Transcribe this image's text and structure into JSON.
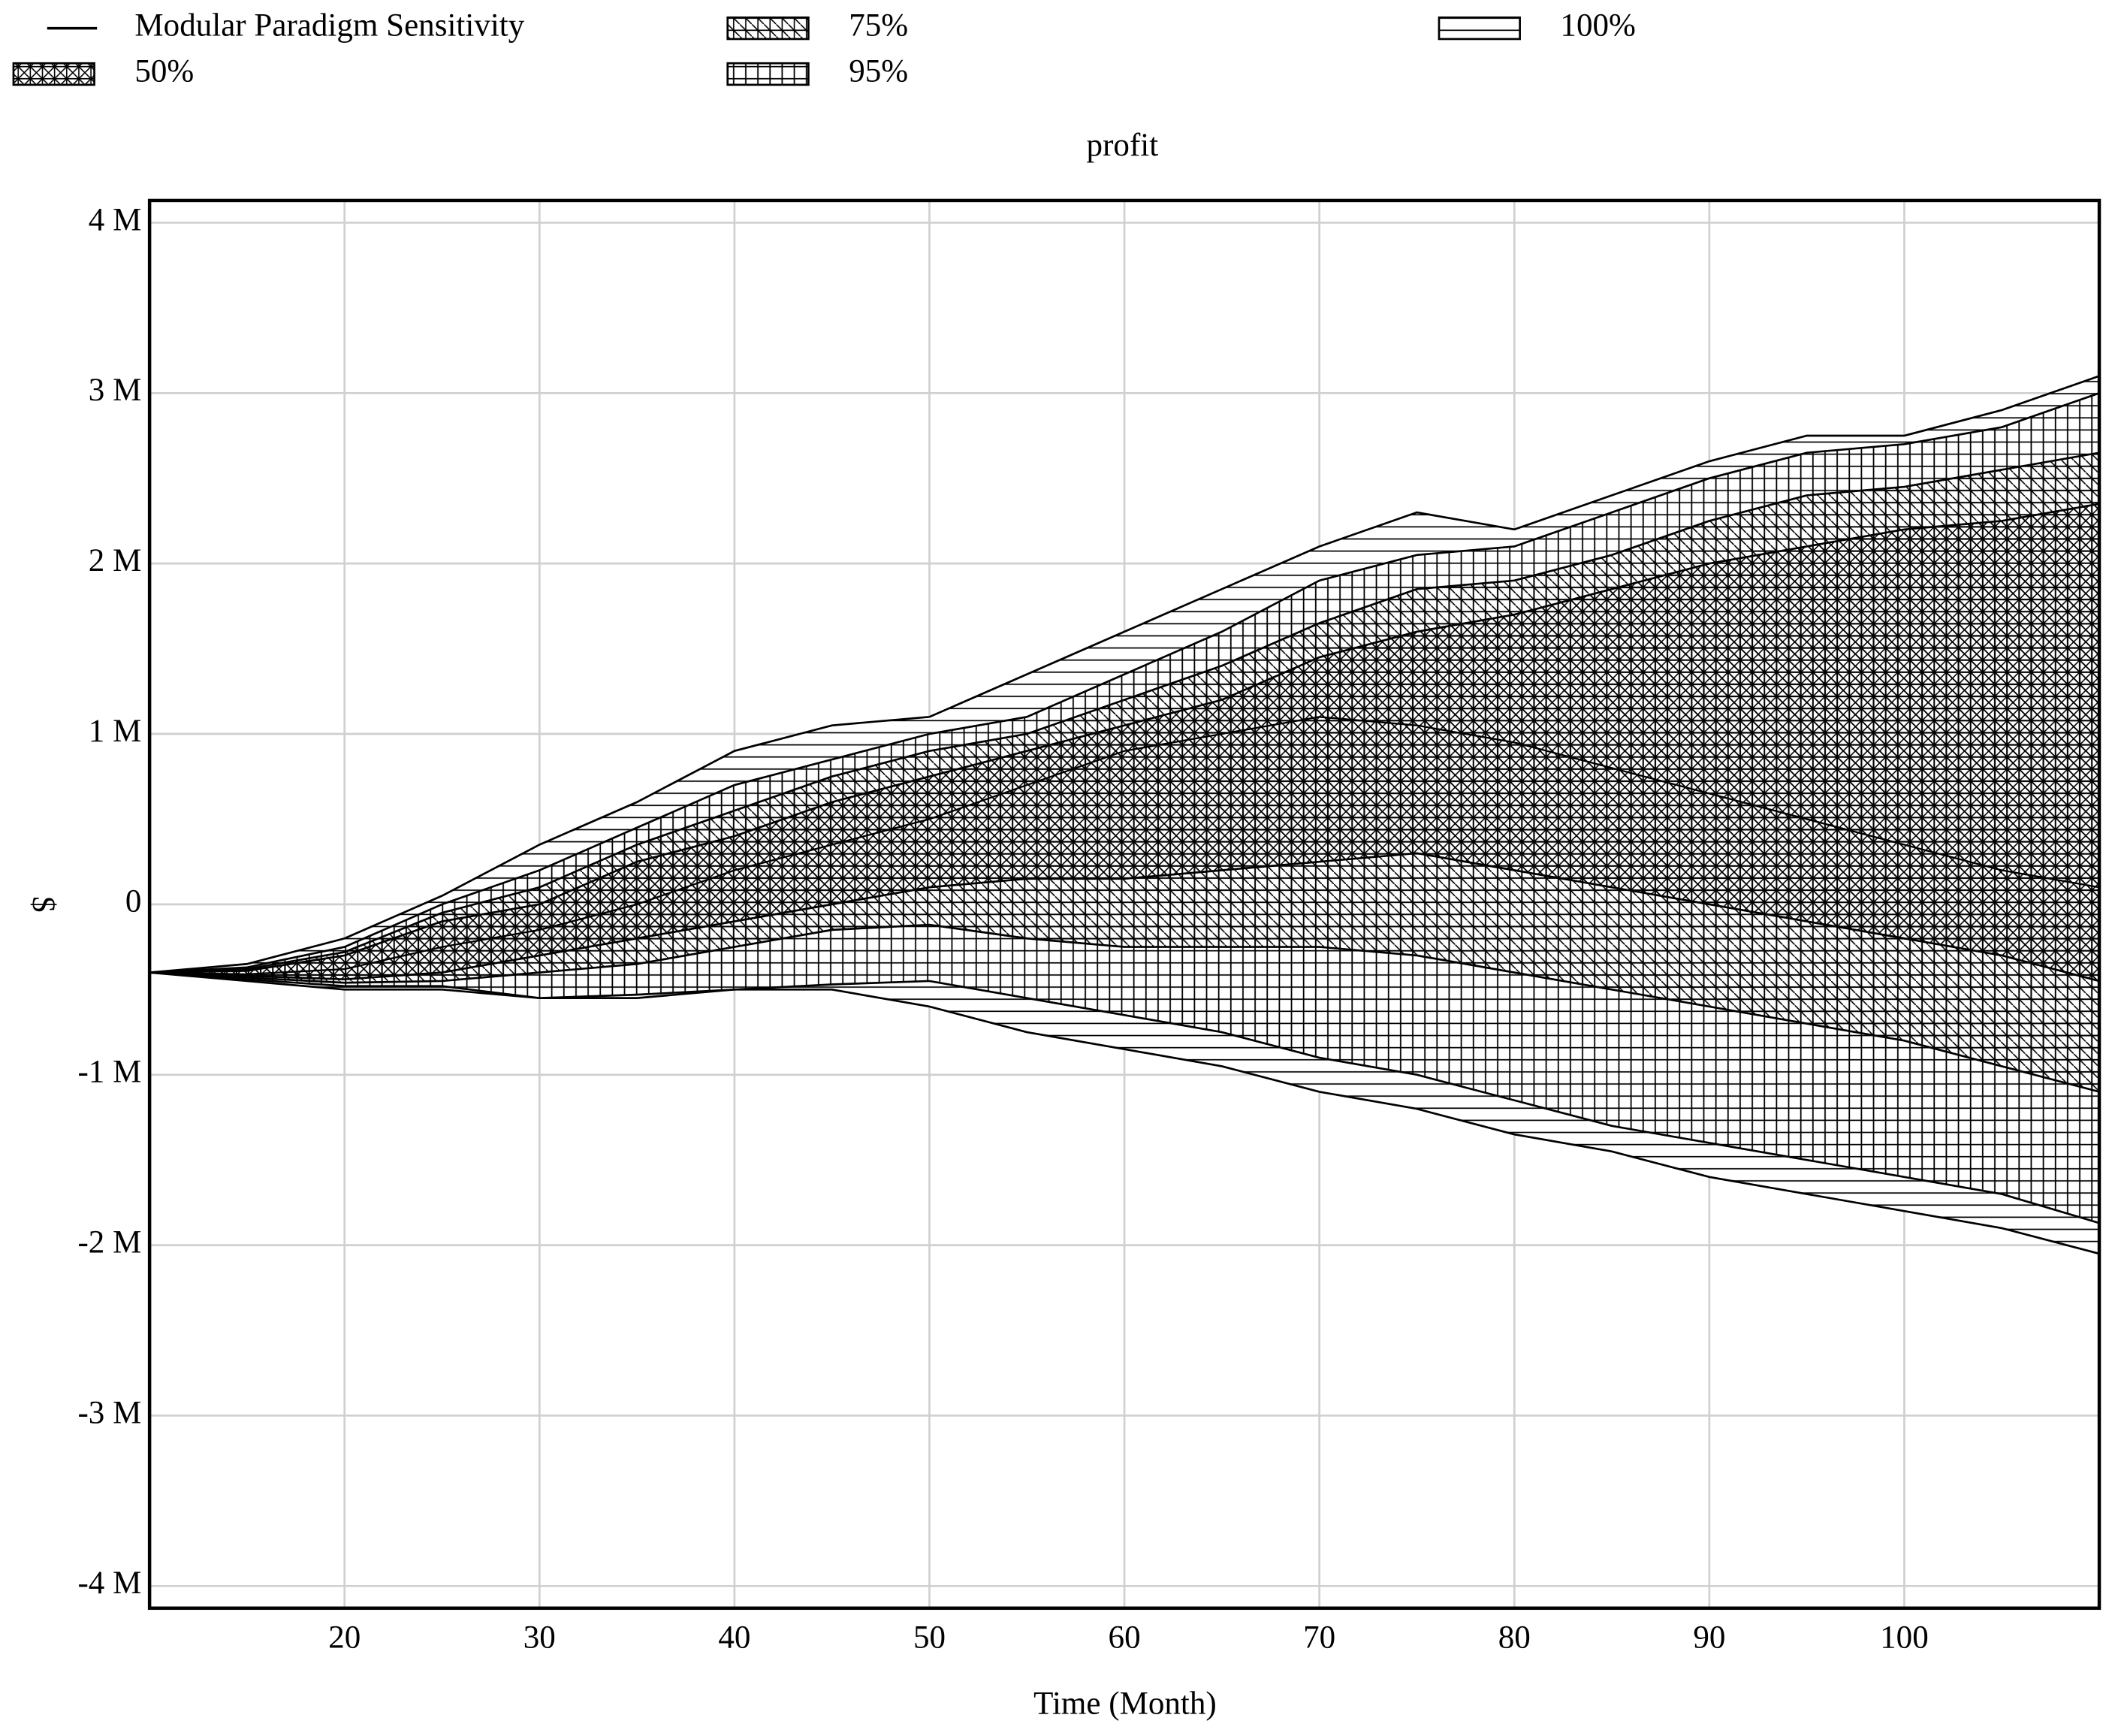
{
  "chart_data": {
    "type": "band",
    "title": "profit",
    "x_label": "Time (Month)",
    "y_label": "$",
    "x": [
      10,
      15,
      20,
      25,
      30,
      35,
      40,
      45,
      50,
      55,
      60,
      65,
      70,
      75,
      80,
      85,
      90,
      95,
      100,
      105,
      110
    ],
    "xlim": [
      10,
      110
    ],
    "xticks": [
      20,
      30,
      40,
      50,
      60,
      70,
      80,
      90,
      100
    ],
    "ylim": [
      -4130000,
      4130000
    ],
    "yticks": [
      {
        "value": -4000000,
        "label": "-4 M"
      },
      {
        "value": -3000000,
        "label": "-3 M"
      },
      {
        "value": -2000000,
        "label": "-2 M"
      },
      {
        "value": -1000000,
        "label": "-1 M"
      },
      0,
      {
        "value": 1000000,
        "label": "1 M"
      },
      {
        "value": 2000000,
        "label": "2 M"
      },
      {
        "value": 3000000,
        "label": "3 M"
      },
      {
        "value": 4000000,
        "label": "4 M"
      }
    ],
    "grid": true,
    "series": [
      {
        "name": "Modular Paradigm Sensitivity",
        "color": "#000000",
        "kind": "line",
        "values": [
          -400000,
          -410000,
          -380000,
          -250000,
          -150000,
          0,
          200000,
          350000,
          500000,
          700000,
          900000,
          1000000,
          1100000,
          1050000,
          950000,
          800000,
          650000,
          500000,
          350000,
          200000,
          100000
        ]
      },
      {
        "name": "50%",
        "color": "#000000",
        "kind": "band",
        "pattern": "cross",
        "upper": [
          -400000,
          -390000,
          -300000,
          -100000,
          0,
          250000,
          400000,
          600000,
          750000,
          900000,
          1050000,
          1200000,
          1450000,
          1600000,
          1700000,
          1850000,
          2000000,
          2100000,
          2200000,
          2250000,
          2350000
        ],
        "lower": [
          -400000,
          -420000,
          -440000,
          -400000,
          -300000,
          -200000,
          -100000,
          0,
          100000,
          150000,
          150000,
          200000,
          250000,
          300000,
          200000,
          100000,
          0,
          -100000,
          -200000,
          -300000,
          -450000
        ]
      },
      {
        "name": "75%",
        "color": "#000000",
        "kind": "band",
        "pattern": "diagonal",
        "upper": [
          -400000,
          -380000,
          -280000,
          -50000,
          100000,
          350000,
          550000,
          750000,
          900000,
          1000000,
          1200000,
          1400000,
          1650000,
          1850000,
          1900000,
          2050000,
          2250000,
          2400000,
          2450000,
          2550000,
          2650000
        ],
        "lower": [
          -400000,
          -430000,
          -460000,
          -450000,
          -400000,
          -350000,
          -250000,
          -150000,
          -120000,
          -200000,
          -250000,
          -250000,
          -250000,
          -300000,
          -400000,
          -500000,
          -600000,
          -700000,
          -800000,
          -950000,
          -1100000
        ]
      },
      {
        "name": "95%",
        "color": "#000000",
        "kind": "band",
        "pattern": "grid",
        "upper": [
          -400000,
          -370000,
          -250000,
          0,
          200000,
          450000,
          700000,
          850000,
          1000000,
          1100000,
          1350000,
          1600000,
          1900000,
          2050000,
          2100000,
          2300000,
          2500000,
          2650000,
          2700000,
          2800000,
          3000000
        ],
        "lower": [
          -400000,
          -440000,
          -480000,
          -480000,
          -550000,
          -530000,
          -500000,
          -470000,
          -450000,
          -550000,
          -650000,
          -750000,
          -900000,
          -1000000,
          -1150000,
          -1300000,
          -1400000,
          -1500000,
          -1600000,
          -1700000,
          -1870000
        ]
      },
      {
        "name": "100%",
        "color": "#000000",
        "kind": "band",
        "pattern": "horizontal",
        "upper": [
          -400000,
          -350000,
          -200000,
          50000,
          350000,
          600000,
          900000,
          1050000,
          1100000,
          1350000,
          1600000,
          1850000,
          2100000,
          2300000,
          2200000,
          2400000,
          2600000,
          2750000,
          2750000,
          2900000,
          3100000
        ],
        "lower": [
          -400000,
          -450000,
          -500000,
          -500000,
          -550000,
          -550000,
          -500000,
          -500000,
          -600000,
          -750000,
          -850000,
          -950000,
          -1100000,
          -1200000,
          -1350000,
          -1450000,
          -1600000,
          -1700000,
          -1800000,
          -1900000,
          -2050000
        ]
      }
    ]
  }
}
